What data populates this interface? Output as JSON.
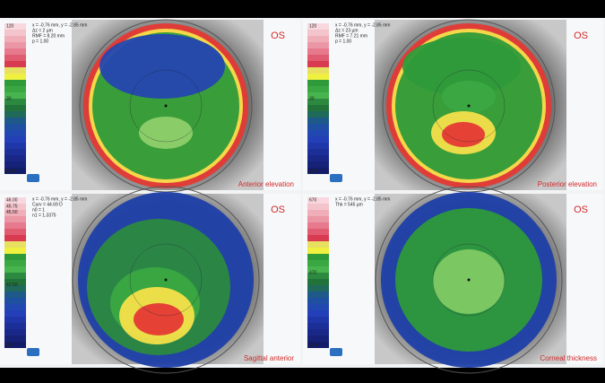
{
  "panels": [
    {
      "eye": "OS",
      "title": "Anterior elevation",
      "header": [
        "x = -0.76 mm, y = -2.85 mm",
        "Δz = 2 µm",
        "RMF = 8.20 mm",
        "p = 1.00"
      ],
      "scale_labels": [
        "120",
        "30",
        "[µm]"
      ]
    },
    {
      "eye": "OS",
      "title": "Posterior elevation",
      "header": [
        "x = -0.76 mm, y = -2.85 mm",
        "Δz = 23 µm",
        "RMF = 7.21 mm",
        "p = 1.00"
      ],
      "scale_labels": [
        "120",
        "30",
        "[µm]"
      ]
    },
    {
      "eye": "OS",
      "title": "Sagittal anterior",
      "header": [
        "x = -0.76 mm, y = -2.85 mm",
        "Curv = 44.69 D",
        "n0 = 1",
        "n1 = 1.3375"
      ],
      "scale_labels": [
        "46.00",
        "45.75",
        "45.50",
        "42.50",
        "(D)"
      ]
    },
    {
      "eye": "OS",
      "title": "Corneal thickness",
      "header": [
        "x = -0.76 mm, y = -2.85 mm",
        "Thk = 545 µm"
      ],
      "scale_labels": [
        "670",
        "470",
        "[µm]"
      ]
    }
  ]
}
